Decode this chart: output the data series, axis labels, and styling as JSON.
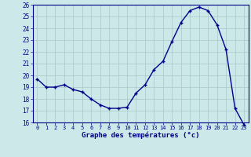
{
  "hours": [
    0,
    1,
    2,
    3,
    4,
    5,
    6,
    7,
    8,
    9,
    10,
    11,
    12,
    13,
    14,
    15,
    16,
    17,
    18,
    19,
    20,
    21,
    22,
    23
  ],
  "temperatures": [
    19.7,
    19.0,
    19.0,
    19.2,
    18.8,
    18.6,
    18.0,
    17.5,
    17.2,
    17.2,
    17.3,
    18.5,
    19.2,
    20.5,
    21.2,
    22.9,
    24.5,
    25.5,
    25.8,
    25.5,
    24.3,
    22.2,
    17.2,
    15.8
  ],
  "line_color": "#00008B",
  "marker": "+",
  "marker_size": 3.5,
  "marker_lw": 1.0,
  "xlabel": "Graphe des températures (°c)",
  "ylim": [
    16,
    26
  ],
  "xlim_min": -0.5,
  "xlim_max": 23.5,
  "yticks": [
    16,
    17,
    18,
    19,
    20,
    21,
    22,
    23,
    24,
    25,
    26
  ],
  "xticks": [
    0,
    1,
    2,
    3,
    4,
    5,
    6,
    7,
    8,
    9,
    10,
    11,
    12,
    13,
    14,
    15,
    16,
    17,
    18,
    19,
    20,
    21,
    22,
    23
  ],
  "bg_color": "#cce8e8",
  "grid_color": "#a8c8c8",
  "tick_label_color": "#00008B",
  "xlabel_color": "#00008B",
  "xlabel_fontsize": 6.5,
  "xlabel_bold": true,
  "xtick_fontsize": 5.0,
  "ytick_fontsize": 5.5,
  "linewidth": 1.0,
  "spine_color": "#00008B"
}
